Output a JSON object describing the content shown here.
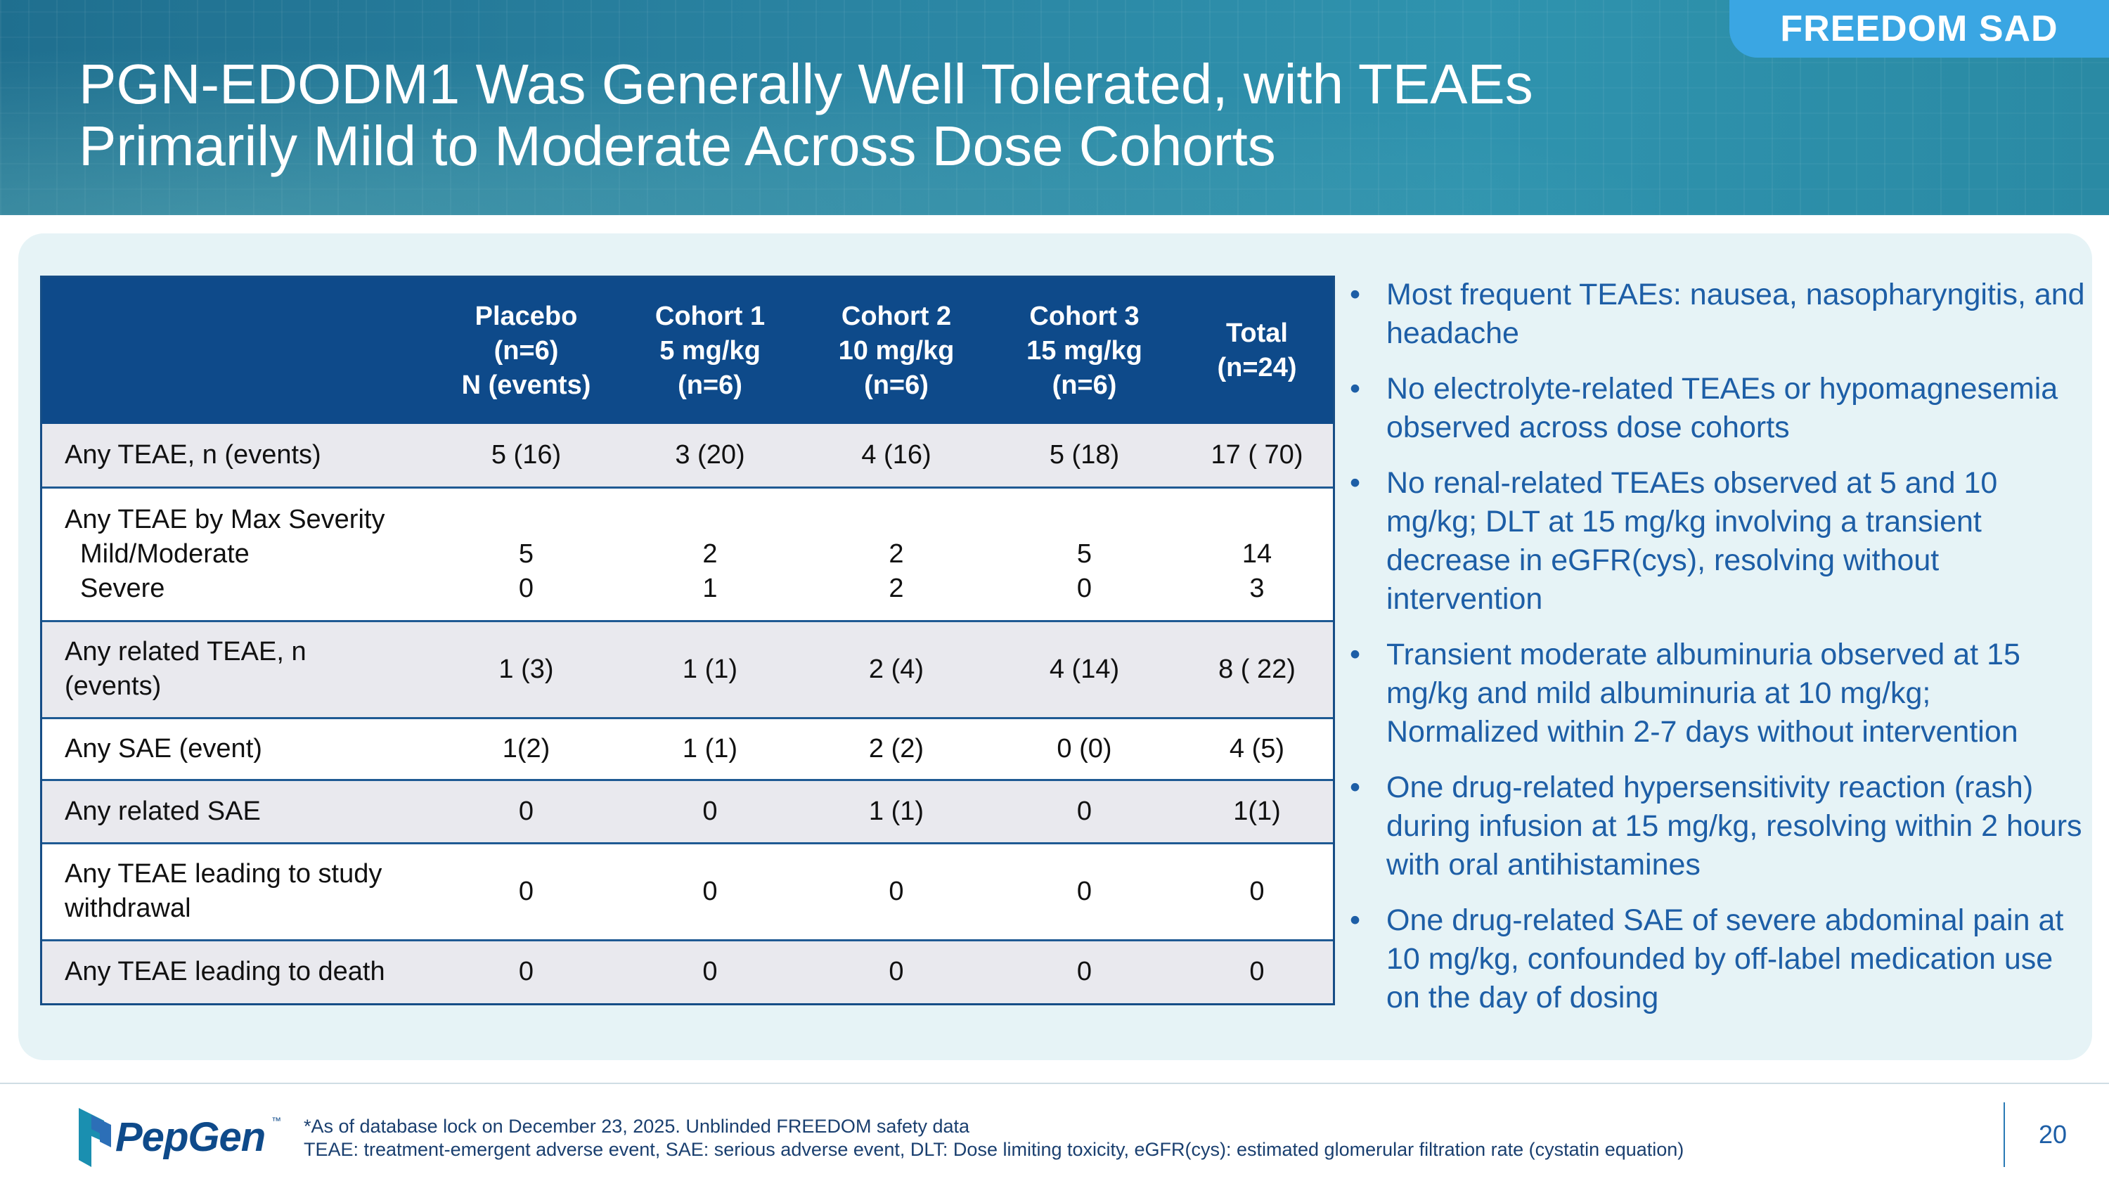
{
  "header": {
    "title_line1": "PGN-EDODM1 Was Generally Well Tolerated, with TEAEs",
    "title_line2": "Primarily Mild to Moderate Across Dose Cohorts",
    "badge": "FREEDOM SAD"
  },
  "table": {
    "columns": [
      {
        "line1": "",
        "line2": "",
        "line3": ""
      },
      {
        "line1": "Placebo",
        "line2": "(n=6)",
        "line3": "N (events)"
      },
      {
        "line1": "Cohort 1",
        "line2": "5 mg/kg",
        "line3": "(n=6)"
      },
      {
        "line1": "Cohort 2",
        "line2": "10 mg/kg",
        "line3": "(n=6)"
      },
      {
        "line1": "Cohort 3",
        "line2": "15 mg/kg",
        "line3": "(n=6)"
      },
      {
        "line1": "Total",
        "line2": "(n=24)",
        "line3": ""
      }
    ],
    "rows": [
      {
        "label": "Any TEAE, n (events)",
        "values": [
          "5 (16)",
          "3 (20)",
          "4 (16)",
          "5 (18)",
          "17 ( 70)"
        ]
      },
      {
        "label": "Any TEAE by Max Severity",
        "sub1": "Mild/Moderate",
        "sub2": "Severe",
        "values1": [
          "5",
          "2",
          "2",
          "5",
          "14"
        ],
        "values2": [
          "0",
          "1",
          "2",
          "0",
          "3"
        ]
      },
      {
        "label_line1": "Any related TEAE, n",
        "label_line2": "(events)",
        "values": [
          "1 (3)",
          "1 (1)",
          "2 (4)",
          "4 (14)",
          "8 ( 22)"
        ]
      },
      {
        "label": "Any SAE (event)",
        "values": [
          "1(2)",
          "1 (1)",
          "2 (2)",
          "0 (0)",
          "4 (5)"
        ]
      },
      {
        "label": "Any related SAE",
        "values": [
          "0",
          "0",
          "1  (1)",
          "0",
          "1(1)"
        ]
      },
      {
        "label_line1": "Any TEAE leading to study",
        "label_line2": "withdrawal",
        "values": [
          "0",
          "0",
          "0",
          "0",
          "0"
        ]
      },
      {
        "label": "Any TEAE leading to death",
        "values": [
          "0",
          "0",
          "0",
          "0",
          "0"
        ]
      }
    ]
  },
  "bullets": [
    "Most frequent TEAEs: nausea, nasopharyngitis, and headache",
    "No electrolyte-related TEAEs or hypomagnesemia observed across dose cohorts",
    "No renal-related TEAEs observed at 5 and 10 mg/kg; DLT at 15 mg/kg involving a transient decrease in eGFR(cys), resolving without intervention",
    "Transient moderate albuminuria observed at 15 mg/kg and mild albuminuria at 10 mg/kg; Normalized within 2-7 days without intervention",
    "One drug-related hypersensitivity reaction (rash) during infusion at 15 mg/kg, resolving within 2 hours with oral antihistamines",
    "One drug-related SAE of severe abdominal pain at 10 mg/kg, confounded by off-label medication use on the day of dosing"
  ],
  "footer": {
    "logo_text": "PepGen",
    "logo_tm": "™",
    "note1": "*As of database lock on December 23, 2025. Unblinded FREEDOM safety data",
    "note2": "TEAE: treatment-emergent adverse event, SAE: serious adverse event, DLT: Dose limiting toxicity, eGFR(cys): estimated glomerular filtration rate (cystatin equation)",
    "page_number": "20"
  },
  "colors": {
    "header_teal": "#2a84a2",
    "table_header_navy": "#0e4a8a",
    "bullet_blue": "#1d5ea6",
    "badge_blue": "#3aa6e3",
    "panel_bg": "#e6f3f6"
  }
}
